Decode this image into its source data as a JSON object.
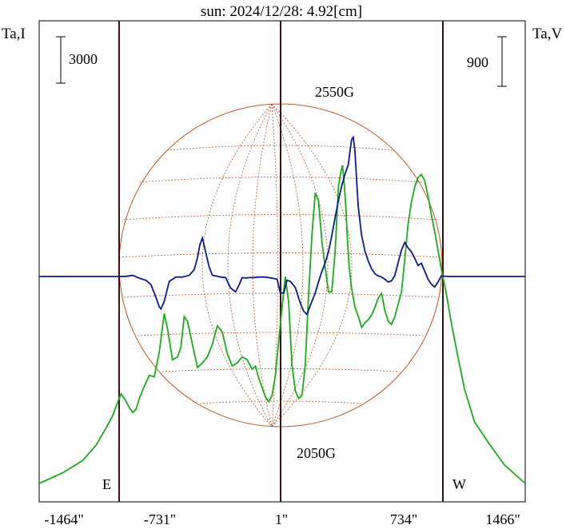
{
  "title": "sun: 2024/12/28: 4.92[cm]",
  "left_axis_label": "Ta,I",
  "right_axis_label": "Ta,V",
  "scale_left": "3000",
  "scale_right": "900",
  "annotations": {
    "top": "2550G",
    "bottom": "2050G",
    "east": "E",
    "west": "W"
  },
  "colors": {
    "title": "#1f2f8a",
    "intensity": "#1cab1c",
    "polarization": "#0a1a8c",
    "limb_lines": "#3a1010",
    "disk": "#b85a2a"
  },
  "chart_data": {
    "type": "line",
    "title": "sun: 2024/12/28: 4.92[cm]",
    "x_unit": "arcsec",
    "xlim": [
      -1464,
      1466
    ],
    "x_ticks": [
      "-1464\"",
      "-731\"",
      "1\"",
      "734\"",
      "1466\""
    ],
    "x_tick_values": [
      -1464,
      -731,
      1,
      734,
      1466
    ],
    "limb_markers": [
      -970,
      1,
      970
    ],
    "series": [
      {
        "name": "Ta,I",
        "color": "#1cab1c",
        "x": [
          -1464,
          -1320,
          -1200,
          -1120,
          -1060,
          -1020,
          -990,
          -970,
          -945,
          -920,
          -900,
          -880,
          -860,
          -830,
          -800,
          -770,
          -740,
          -710,
          -690,
          -660,
          -630,
          -610,
          -590,
          -570,
          -540,
          -510,
          -480,
          -450,
          -420,
          -390,
          -360,
          -330,
          -300,
          -270,
          -240,
          -210,
          -180,
          -160,
          -140,
          -120,
          -100,
          -80,
          -60,
          -40,
          -20,
          1,
          20,
          40,
          60,
          80,
          100,
          120,
          140,
          160,
          180,
          200,
          220,
          240,
          260,
          280,
          300,
          320,
          340,
          355,
          365,
          375,
          385,
          395,
          405,
          420,
          440,
          460,
          480,
          500,
          520,
          540,
          560,
          580,
          600,
          620,
          640,
          660,
          680,
          700,
          720,
          740,
          760,
          780,
          800,
          820,
          840,
          860,
          880,
          900,
          920,
          940,
          960,
          990,
          1020,
          1060,
          1100,
          1160,
          1240,
          1340,
          1466
        ],
        "y": [
          0,
          700,
          1500,
          2500,
          3600,
          4400,
          5300,
          5800,
          5400,
          4900,
          4600,
          4800,
          5500,
          6300,
          7000,
          6900,
          8500,
          11000,
          10000,
          8000,
          8200,
          8800,
          10800,
          10500,
          9000,
          7500,
          7800,
          8200,
          9000,
          10200,
          9800,
          8400,
          7600,
          7800,
          8200,
          8000,
          7400,
          7600,
          6800,
          6200,
          5600,
          5300,
          5700,
          7000,
          9200,
          11500,
          13400,
          11700,
          7700,
          6000,
          5500,
          5700,
          7600,
          12200,
          16000,
          18800,
          18300,
          15700,
          14000,
          12400,
          12400,
          15000,
          19200,
          20200,
          20600,
          19400,
          17800,
          15600,
          14000,
          12600,
          11400,
          10800,
          10100,
          10400,
          10600,
          10900,
          11400,
          12000,
          12300,
          11200,
          10500,
          10300,
          10800,
          11600,
          12400,
          14500,
          16800,
          18200,
          19200,
          19800,
          20000,
          19600,
          18600,
          17400,
          16300,
          15100,
          13900,
          12300,
          10400,
          8200,
          6100,
          4000,
          2700,
          1200,
          0
        ]
      },
      {
        "name": "Ta,V",
        "color": "#0a1a8c",
        "x": [
          -1464,
          -1300,
          -1150,
          -1040,
          -970,
          -940,
          -900,
          -860,
          -820,
          -790,
          -760,
          -740,
          -730,
          -710,
          -680,
          -640,
          -600,
          -560,
          -530,
          -510,
          -495,
          -480,
          -460,
          -440,
          -420,
          -400,
          -370,
          -340,
          -310,
          -280,
          -260,
          -240,
          -220,
          -200,
          -170,
          -140,
          -100,
          -60,
          -30,
          -10,
          10,
          30,
          50,
          80,
          110,
          130,
          150,
          170,
          200,
          220,
          240,
          260,
          280,
          300,
          320,
          340,
          360,
          380,
          400,
          410,
          420,
          430,
          440,
          450,
          460,
          480,
          500,
          520,
          540,
          560,
          580,
          600,
          620,
          640,
          660,
          680,
          700,
          720,
          740,
          760,
          780,
          800,
          820,
          840,
          860,
          880,
          900,
          920,
          940,
          960,
          1000,
          1100,
          1200,
          1300,
          1466
        ],
        "y": [
          0,
          0,
          0,
          0,
          0,
          3,
          20,
          -30,
          -70,
          -150,
          -380,
          -550,
          -590,
          -450,
          -90,
          -10,
          -10,
          20,
          120,
          340,
          580,
          700,
          440,
          180,
          20,
          10,
          -10,
          -20,
          -210,
          -280,
          -160,
          -20,
          -30,
          -20,
          -20,
          -10,
          -10,
          -30,
          -50,
          -300,
          -300,
          -70,
          -90,
          -200,
          -480,
          -630,
          -690,
          -530,
          -300,
          -100,
          90,
          240,
          450,
          740,
          1070,
          1380,
          1650,
          1860,
          2040,
          2290,
          2490,
          2530,
          2260,
          1720,
          1260,
          740,
          460,
          280,
          140,
          50,
          10,
          -10,
          -50,
          -100,
          -80,
          20,
          250,
          480,
          620,
          520,
          450,
          330,
          200,
          240,
          100,
          -50,
          -140,
          -190,
          -100,
          10,
          0,
          0,
          0,
          0,
          0
        ]
      }
    ]
  }
}
